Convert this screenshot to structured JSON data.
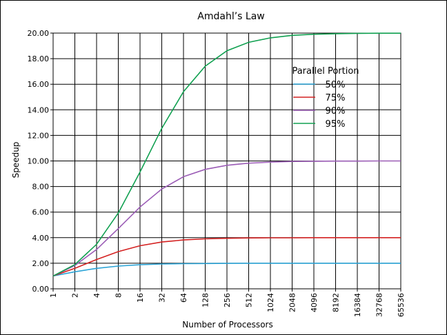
{
  "chart_data": {
    "type": "line",
    "title": "Amdahl’s Law",
    "xlabel": "Number of Processors",
    "ylabel": "Speedup",
    "x_scale": "log2",
    "x": [
      1,
      2,
      4,
      8,
      16,
      32,
      64,
      128,
      256,
      512,
      1024,
      2048,
      4096,
      8192,
      16384,
      32768,
      65536
    ],
    "x_tick_labels": [
      "1",
      "2",
      "4",
      "8",
      "16",
      "32",
      "64",
      "128",
      "256",
      "512",
      "1024",
      "2048",
      "4096",
      "8192",
      "16384",
      "32768",
      "65536"
    ],
    "ylim": [
      0,
      20
    ],
    "y_ticks": [
      0,
      2,
      4,
      6,
      8,
      10,
      12,
      14,
      16,
      18,
      20
    ],
    "y_tick_labels": [
      "0.00",
      "2.00",
      "4.00",
      "6.00",
      "8.00",
      "10.00",
      "12.00",
      "14.00",
      "16.00",
      "18.00",
      "20.00"
    ],
    "grid": true,
    "legend": {
      "title": "Parallel Portion",
      "placement": "top-right"
    },
    "series": [
      {
        "name": "50%",
        "color": "#2aa3d6",
        "values": [
          1.0,
          1.33,
          1.6,
          1.78,
          1.88,
          1.94,
          1.97,
          1.98,
          1.99,
          2.0,
          2.0,
          2.0,
          2.0,
          2.0,
          2.0,
          2.0,
          2.0
        ]
      },
      {
        "name": "75%",
        "color": "#d42020",
        "values": [
          1.0,
          1.6,
          2.29,
          2.91,
          3.37,
          3.66,
          3.82,
          3.91,
          3.95,
          3.98,
          3.99,
          3.99,
          4.0,
          4.0,
          4.0,
          4.0,
          4.0
        ]
      },
      {
        "name": "90%",
        "color": "#9a5bb5",
        "values": [
          1.0,
          1.82,
          3.08,
          4.71,
          6.4,
          7.8,
          8.77,
          9.34,
          9.66,
          9.83,
          9.91,
          9.96,
          9.98,
          9.99,
          9.99,
          10.0,
          10.0
        ]
      },
      {
        "name": "95%",
        "color": "#10a050",
        "values": [
          1.0,
          1.9,
          3.48,
          5.93,
          9.14,
          12.55,
          15.42,
          17.41,
          18.62,
          19.28,
          19.63,
          19.82,
          19.91,
          19.95,
          19.98,
          19.99,
          19.99
        ]
      }
    ]
  }
}
